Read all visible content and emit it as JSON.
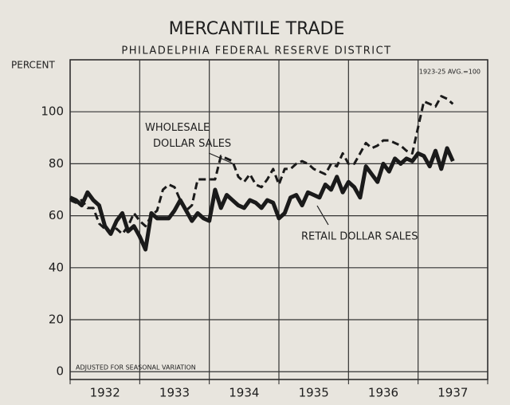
{
  "chart_data": {
    "type": "line",
    "title": "MERCANTILE TRADE",
    "subtitle": "PHILADELPHIA FEDERAL RESERVE DISTRICT",
    "y_label": "PERCENT",
    "base_note": "1923-25 AVG.=100",
    "footnote": "ADJUSTED FOR SEASONAL VARIATION",
    "x": [
      1932.0,
      1932.083,
      1932.167,
      1932.25,
      1932.333,
      1932.417,
      1932.5,
      1932.583,
      1932.667,
      1932.75,
      1932.833,
      1932.917,
      1933.0,
      1933.083,
      1933.167,
      1933.25,
      1933.333,
      1933.417,
      1933.5,
      1933.583,
      1933.667,
      1933.75,
      1933.833,
      1933.917,
      1934.0,
      1934.083,
      1934.167,
      1934.25,
      1934.333,
      1934.417,
      1934.5,
      1934.583,
      1934.667,
      1934.75,
      1934.833,
      1934.917,
      1935.0,
      1935.083,
      1935.167,
      1935.25,
      1935.333,
      1935.417,
      1935.5,
      1935.583,
      1935.667,
      1935.75,
      1935.833,
      1935.917,
      1936.0,
      1936.083,
      1936.167,
      1936.25,
      1936.333,
      1936.417,
      1936.5,
      1936.583,
      1936.667,
      1936.75,
      1936.833,
      1936.917,
      1937.0,
      1937.083,
      1937.167,
      1937.25,
      1937.333,
      1937.417,
      1937.5
    ],
    "series": [
      {
        "name": "RETAIL DOLLAR SALES",
        "color": "#1a1a1a",
        "style": "solid",
        "values": [
          67,
          66,
          64,
          69,
          66,
          64,
          56,
          53,
          58,
          61,
          54,
          56,
          52,
          47,
          61,
          59,
          59,
          59,
          62,
          66,
          62,
          58,
          61,
          59,
          58,
          70,
          63,
          68,
          66,
          64,
          63,
          66,
          65,
          63,
          66,
          65,
          59,
          61,
          67,
          68,
          64,
          69,
          68,
          67,
          72,
          70,
          75,
          69,
          73,
          71,
          67,
          79,
          76,
          73,
          80,
          77,
          82,
          80,
          82,
          81,
          84,
          83,
          79,
          85,
          78,
          86,
          81
        ]
      },
      {
        "name": "WHOLESALE DOLLAR SALES",
        "color": "#1a1a1a",
        "style": "dashed",
        "values": [
          66,
          65,
          66,
          63,
          63,
          57,
          55,
          53,
          55,
          53,
          56,
          61,
          58,
          56,
          60,
          62,
          70,
          72,
          71,
          66,
          62,
          64,
          74,
          74,
          74,
          74,
          83,
          82,
          81,
          75,
          73,
          76,
          72,
          71,
          74,
          78,
          72,
          78,
          78,
          80,
          81,
          80,
          78,
          77,
          76,
          80,
          79,
          84,
          80,
          80,
          84,
          88,
          86,
          87,
          89,
          89,
          88,
          87,
          85,
          84,
          94,
          104,
          103,
          102,
          106,
          105,
          103
        ]
      }
    ],
    "xlim": [
      1932,
      1938
    ],
    "xticks": [
      1932,
      1933,
      1934,
      1935,
      1936,
      1937,
      1938
    ],
    "year_labels": [
      "1932",
      "1933",
      "1934",
      "1935",
      "1936",
      "1937"
    ],
    "ylim": [
      -3,
      120
    ],
    "yticks": [
      0,
      20,
      40,
      60,
      80,
      100
    ],
    "grid": true
  }
}
